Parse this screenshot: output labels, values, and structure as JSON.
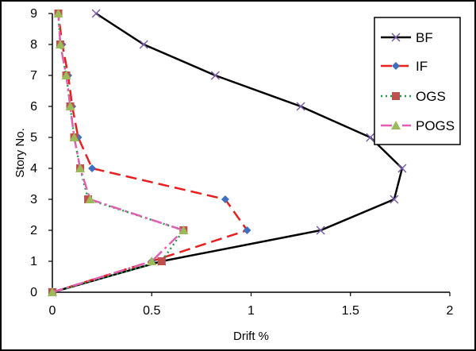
{
  "chart_data": {
    "type": "line",
    "title": "",
    "xlabel": "Drift %",
    "ylabel": "Story No.",
    "xlim": [
      0,
      2
    ],
    "ylim": [
      0,
      9
    ],
    "x_ticks": [
      0,
      0.5,
      1,
      1.5,
      2
    ],
    "y_ticks": [
      0,
      1,
      2,
      3,
      4,
      5,
      6,
      7,
      8,
      9
    ],
    "x_tick_labels": [
      "0",
      "0.5",
      "1",
      "1.5",
      "2"
    ],
    "y_tick_labels": [
      "0",
      "1",
      "2",
      "3",
      "4",
      "5",
      "6",
      "7",
      "8",
      "9"
    ],
    "grid": false,
    "legend_position": "top-right",
    "series": [
      {
        "name": "BF",
        "color": "#000000",
        "line": "solid",
        "marker": "x",
        "points": [
          [
            0,
            0
          ],
          [
            0.55,
            1
          ],
          [
            1.35,
            2
          ],
          [
            1.72,
            3
          ],
          [
            1.76,
            4
          ],
          [
            1.6,
            5
          ],
          [
            1.25,
            6
          ],
          [
            0.82,
            7
          ],
          [
            0.46,
            8
          ],
          [
            0.22,
            9
          ]
        ]
      },
      {
        "name": "IF",
        "color": "#e8201f",
        "line": "dashed",
        "marker": "diamond",
        "markerColor": "#3f6fbf",
        "points": [
          [
            0,
            0
          ],
          [
            0.5,
            1
          ],
          [
            0.98,
            2
          ],
          [
            0.87,
            3
          ],
          [
            0.2,
            4
          ],
          [
            0.13,
            5
          ],
          [
            0.1,
            6
          ],
          [
            0.08,
            7
          ],
          [
            0.05,
            8
          ],
          [
            0.03,
            9
          ]
        ]
      },
      {
        "name": "OGS",
        "color": "#1f9e4a",
        "line": "dotted",
        "marker": "square",
        "markerColor": "#c0504d",
        "points": [
          [
            0,
            0
          ],
          [
            0.55,
            1
          ],
          [
            0.66,
            2
          ],
          [
            0.18,
            3
          ],
          [
            0.14,
            4
          ],
          [
            0.11,
            5
          ],
          [
            0.09,
            6
          ],
          [
            0.07,
            7
          ],
          [
            0.04,
            8
          ],
          [
            0.03,
            9
          ]
        ]
      },
      {
        "name": "POGS",
        "color": "#e05fb0",
        "line": "dashdot",
        "marker": "triangle",
        "markerColor": "#9bbb59",
        "points": [
          [
            0,
            0
          ],
          [
            0.5,
            1
          ],
          [
            0.66,
            2
          ],
          [
            0.19,
            3
          ],
          [
            0.14,
            4
          ],
          [
            0.11,
            5
          ],
          [
            0.09,
            6
          ],
          [
            0.07,
            7
          ],
          [
            0.04,
            8
          ],
          [
            0.03,
            9
          ]
        ]
      }
    ]
  }
}
